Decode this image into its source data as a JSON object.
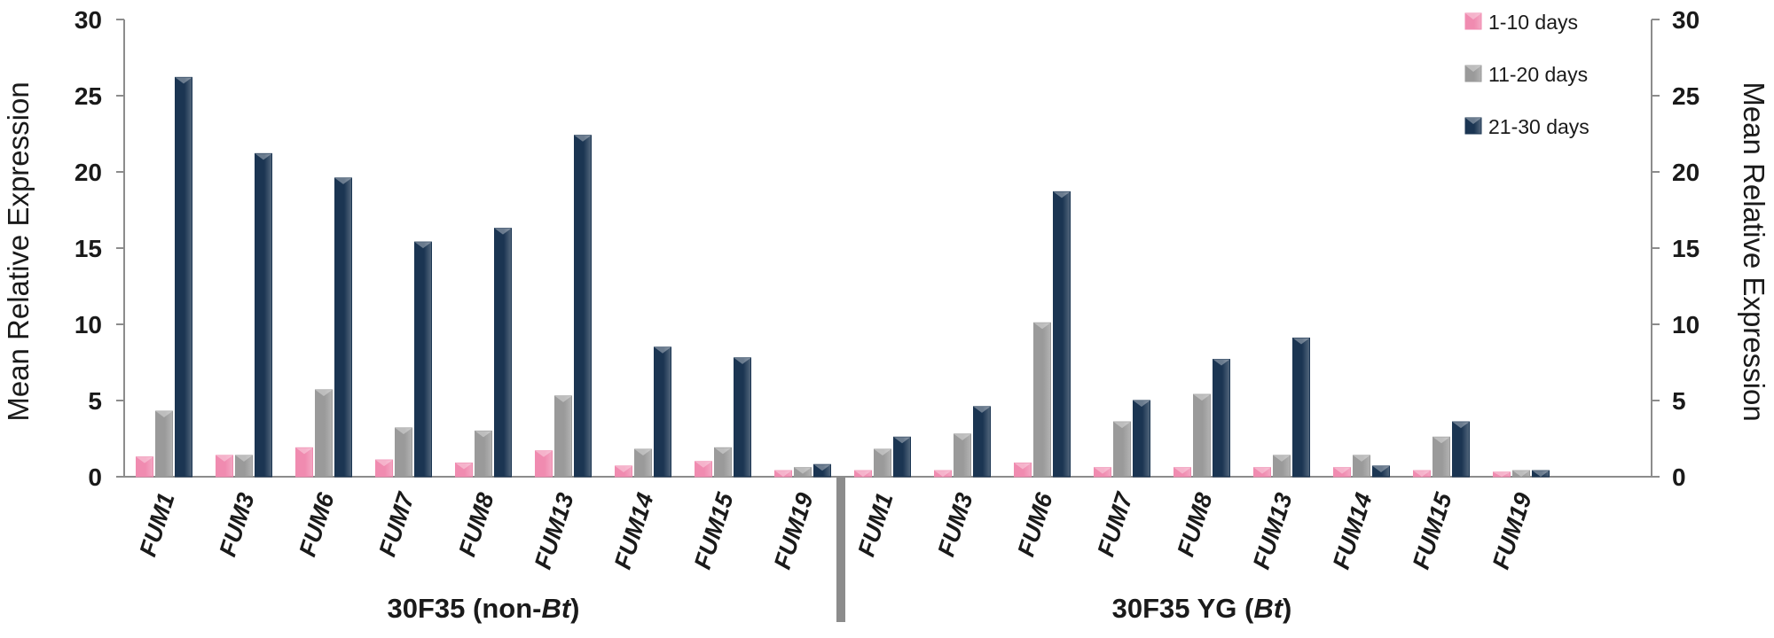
{
  "chart_data": {
    "type": "bar",
    "ylabel_left": "Mean Relative Expression",
    "ylabel_right": "Mean Relative Expression",
    "ylim": [
      0,
      30
    ],
    "yticks": [
      0,
      5,
      10,
      15,
      20,
      25,
      30
    ],
    "grid": false,
    "legend_position": "top-right",
    "groups": [
      {
        "label_parts": [
          {
            "text": "30F35 (non-",
            "italic": false
          },
          {
            "text": "Bt",
            "italic": true
          },
          {
            "text": ")",
            "italic": false
          }
        ],
        "categories": [
          "FUM1",
          "FUM3",
          "FUM6",
          "FUM7",
          "FUM8",
          "FUM13",
          "FUM14",
          "FUM15",
          "FUM19"
        ],
        "series": [
          {
            "name": "1-10 days",
            "values": [
              1.3,
              1.4,
              1.9,
              1.1,
              0.9,
              1.7,
              0.7,
              1.0,
              0.4
            ]
          },
          {
            "name": "11-20 days",
            "values": [
              4.3,
              1.4,
              5.7,
              3.2,
              3.0,
              5.3,
              1.8,
              1.9,
              0.6
            ]
          },
          {
            "name": "21-30 days",
            "values": [
              26.2,
              21.2,
              19.6,
              15.4,
              16.3,
              22.4,
              8.5,
              7.8,
              0.8
            ]
          }
        ]
      },
      {
        "label_parts": [
          {
            "text": "30F35 YG (",
            "italic": false
          },
          {
            "text": "Bt",
            "italic": true
          },
          {
            "text": ")",
            "italic": false
          }
        ],
        "categories": [
          "FUM1",
          "FUM3",
          "FUM6",
          "FUM7",
          "FUM8",
          "FUM13",
          "FUM14",
          "FUM15",
          "FUM19"
        ],
        "series": [
          {
            "name": "1-10 days",
            "values": [
              0.4,
              0.4,
              0.9,
              0.6,
              0.6,
              0.6,
              0.6,
              0.4,
              0.3
            ]
          },
          {
            "name": "11-20 days",
            "values": [
              1.8,
              2.8,
              10.1,
              3.6,
              5.4,
              1.4,
              1.4,
              2.6,
              0.4
            ]
          },
          {
            "name": "21-30 days",
            "values": [
              2.6,
              4.6,
              18.7,
              5.0,
              7.7,
              9.1,
              0.7,
              3.6,
              0.4
            ]
          }
        ]
      }
    ],
    "colors": {
      "1-10 days": "#f08bb0",
      "11-20 days": "#9a9a9a",
      "21-30 days": "#1b3552"
    }
  }
}
